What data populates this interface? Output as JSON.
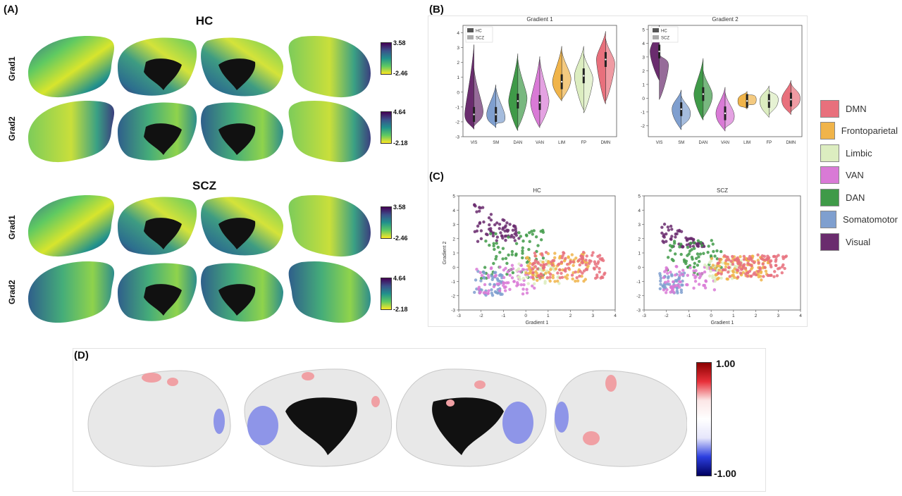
{
  "panels": {
    "a": "(A)",
    "b": "(B)",
    "c": "(C)",
    "d": "(D)"
  },
  "panel_a": {
    "groups": [
      "HC",
      "SCZ"
    ],
    "row_labels": [
      "Grad1",
      "Grad2"
    ],
    "colorbars": [
      {
        "max": "3.58",
        "min": "-2.46"
      },
      {
        "max": "4.64",
        "min": "-2.18"
      },
      {
        "max": "3.58",
        "min": "-2.46"
      },
      {
        "max": "4.64",
        "min": "-2.18"
      }
    ],
    "colormap": [
      "#440154",
      "#3b528b",
      "#21918c",
      "#5ec962",
      "#fde725"
    ]
  },
  "legend": {
    "items": [
      {
        "label": "DMN",
        "color": "#e8707c"
      },
      {
        "label": "Frontoparietal",
        "color": "#f0b44a"
      },
      {
        "label": "Limbic",
        "color": "#dcedc0"
      },
      {
        "label": "VAN",
        "color": "#d97ad6"
      },
      {
        "label": "DAN",
        "color": "#3f9a48"
      },
      {
        "label": "Somatomotor",
        "color": "#7f9fcf"
      },
      {
        "label": "Visual",
        "color": "#6a2c6e"
      }
    ]
  },
  "panel_d": {
    "colorbar_max": "1.00",
    "colorbar_min": "-1.00"
  },
  "chart_data": [
    {
      "type": "violin",
      "title": "Gradient 1",
      "categories": [
        "VIS",
        "SM",
        "DAN",
        "VAN",
        "LIM",
        "FP",
        "DMN"
      ],
      "colors": [
        "#6a2c6e",
        "#7f9fcf",
        "#3f9a48",
        "#d97ad6",
        "#f0b44a",
        "#dcedc0",
        "#e8707c"
      ],
      "legend": [
        "HC",
        "SCZ"
      ],
      "ylim": [
        -3,
        4.5
      ],
      "yticks": [
        "-3",
        "-2",
        "-1",
        "0",
        "1",
        "2",
        "3",
        "4"
      ],
      "series": [
        {
          "name": "HC",
          "min": [
            -2.5,
            -2.4,
            -2.6,
            -2.4,
            -0.6,
            -1.2,
            -0.8
          ],
          "max": [
            3.2,
            0.5,
            2.6,
            2.4,
            3.1,
            3.1,
            4.1
          ],
          "median": [
            -1.5,
            -1.5,
            -0.6,
            -0.7,
            0.7,
            1.1,
            2.2
          ]
        },
        {
          "name": "SCZ",
          "min": [
            -2.3,
            -2.2,
            -2.4,
            -2.3,
            -0.5,
            -1.4,
            -0.6
          ],
          "max": [
            1.6,
            0.3,
            2.2,
            2.2,
            2.8,
            2.6,
            3.6
          ],
          "median": [
            -1.3,
            -1.7,
            -0.4,
            -0.6,
            0.9,
            0.9,
            1.9
          ]
        }
      ]
    },
    {
      "type": "violin",
      "title": "Gradient 2",
      "categories": [
        "VIS",
        "SM",
        "DAN",
        "VAN",
        "LIM",
        "FP",
        "DMN"
      ],
      "colors": [
        "#6a2c6e",
        "#7f9fcf",
        "#3f9a48",
        "#d97ad6",
        "#f0b44a",
        "#dcedc0",
        "#e8707c"
      ],
      "legend": [
        "HC",
        "SCZ"
      ],
      "ylim": [
        -2.8,
        5.3
      ],
      "yticks": [
        "-2",
        "-1",
        "0",
        "1",
        "2",
        "3",
        "4",
        "5"
      ],
      "series": [
        {
          "name": "HC",
          "min": [
            1.3,
            -2.3,
            -1.6,
            -2.4,
            -0.8,
            -1.4,
            -1.2
          ],
          "max": [
            5.3,
            0.6,
            2.9,
            0.8,
            0.5,
            0.9,
            1.3
          ],
          "median": [
            3.4,
            -0.8,
            0.3,
            -1.1,
            -0.2,
            -0.2,
            -0.1
          ]
        },
        {
          "name": "SCZ",
          "min": [
            -0.1,
            -2.1,
            -1.4,
            -2.2,
            -0.6,
            -1.2,
            -1.0
          ],
          "max": [
            3.2,
            0.2,
            2.0,
            0.4,
            0.3,
            0.6,
            1.1
          ],
          "median": [
            2.4,
            -1.1,
            0.2,
            -1.3,
            -0.1,
            -0.1,
            0.0
          ]
        }
      ]
    },
    {
      "type": "scatter",
      "title": "HC",
      "xlabel": "Gradient 1",
      "ylabel": "Gradient 2",
      "xlim": [
        -3,
        4
      ],
      "ylim": [
        -3,
        5
      ],
      "xticks": [
        "-3",
        "-2",
        "-1",
        "0",
        "1",
        "2",
        "3",
        "4"
      ],
      "yticks": [
        "-3",
        "-2",
        "-1",
        "0",
        "1",
        "2",
        "3",
        "4",
        "5"
      ],
      "clusters": [
        {
          "network": "Visual",
          "color": "#6a2c6e",
          "x_range": [
            -2.3,
            -0.3
          ],
          "y_range": [
            1.8,
            4.6
          ],
          "count": 70
        },
        {
          "network": "DAN",
          "color": "#3f9a48",
          "x_range": [
            -2.0,
            0.8
          ],
          "y_range": [
            -0.8,
            2.6
          ],
          "count": 70
        },
        {
          "network": "Somatomotor",
          "color": "#7f9fcf",
          "x_range": [
            -2.3,
            -1.0
          ],
          "y_range": [
            -2.0,
            -0.2
          ],
          "count": 50
        },
        {
          "network": "VAN",
          "color": "#d97ad6",
          "x_range": [
            -2.2,
            0.4
          ],
          "y_range": [
            -1.9,
            0.2
          ],
          "count": 70
        },
        {
          "network": "Limbic",
          "color": "#dcedc0",
          "x_range": [
            -0.5,
            1.5
          ],
          "y_range": [
            -1.2,
            0.5
          ],
          "count": 40
        },
        {
          "network": "Frontoparietal",
          "color": "#f0b44a",
          "x_range": [
            0.0,
            2.8
          ],
          "y_range": [
            -1.0,
            1.0
          ],
          "count": 90
        },
        {
          "network": "DMN",
          "color": "#e8707c",
          "x_range": [
            0.3,
            3.6
          ],
          "y_range": [
            -0.8,
            1.1
          ],
          "count": 110
        }
      ]
    },
    {
      "type": "scatter",
      "title": "SCZ",
      "xlabel": "Gradient 1",
      "ylabel": "",
      "xlim": [
        -3,
        4
      ],
      "ylim": [
        -3,
        5
      ],
      "xticks": [
        "-3",
        "-2",
        "-1",
        "0",
        "1",
        "2",
        "3",
        "4"
      ],
      "yticks": [
        "-3",
        "-2",
        "-1",
        "0",
        "1",
        "2",
        "3",
        "4",
        "5"
      ],
      "clusters": [
        {
          "network": "Visual",
          "color": "#6a2c6e",
          "x_range": [
            -2.2,
            -0.3
          ],
          "y_range": [
            1.4,
            3.3
          ],
          "count": 60
        },
        {
          "network": "DAN",
          "color": "#3f9a48",
          "x_range": [
            -2.0,
            0.5
          ],
          "y_range": [
            -0.5,
            1.9
          ],
          "count": 65
        },
        {
          "network": "Somatomotor",
          "color": "#7f9fcf",
          "x_range": [
            -2.3,
            -1.2
          ],
          "y_range": [
            -1.8,
            -0.4
          ],
          "count": 45
        },
        {
          "network": "VAN",
          "color": "#d97ad6",
          "x_range": [
            -2.2,
            0.2
          ],
          "y_range": [
            -1.8,
            0.1
          ],
          "count": 65
        },
        {
          "network": "Limbic",
          "color": "#dcedc0",
          "x_range": [
            -0.3,
            1.4
          ],
          "y_range": [
            -1.0,
            0.5
          ],
          "count": 40
        },
        {
          "network": "Frontoparietal",
          "color": "#f0b44a",
          "x_range": [
            0.0,
            2.6
          ],
          "y_range": [
            -0.9,
            0.8
          ],
          "count": 90
        },
        {
          "network": "DMN",
          "color": "#e8707c",
          "x_range": [
            0.3,
            3.4
          ],
          "y_range": [
            -0.7,
            0.9
          ],
          "count": 110
        }
      ]
    }
  ]
}
